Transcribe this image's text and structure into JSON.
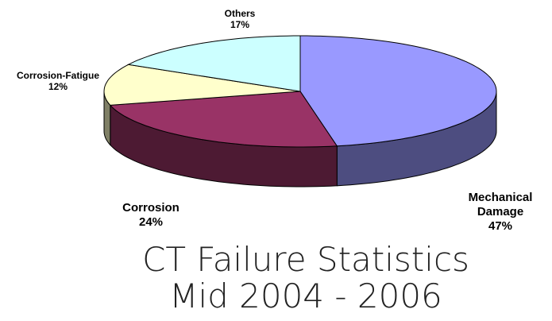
{
  "chart_data": {
    "type": "pie",
    "title": "CT Failure Statistics Mid 2004 - 2006",
    "categories": [
      "Mechanical Damage",
      "Corrosion",
      "Corrosion-Fatigue",
      "Others"
    ],
    "values": [
      47,
      24,
      12,
      17
    ],
    "value_labels": [
      "47%",
      "24%",
      "12%",
      "17%"
    ],
    "colors": [
      "#9999ff",
      "#993366",
      "#ffffcc",
      "#ccffff"
    ],
    "three_d": true
  }
}
